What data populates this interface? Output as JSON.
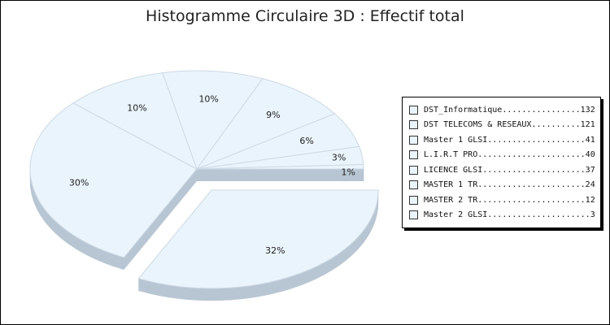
{
  "chart_data": {
    "type": "pie",
    "title": "Histogramme Circulaire 3D : Effectif total",
    "slices": [
      {
        "label": "DST_Informatique",
        "value": 132,
        "percent_label": "32%",
        "exploded": true
      },
      {
        "label": "DST TELECOMS & RESEAUX",
        "value": 121,
        "percent_label": "30%"
      },
      {
        "label": "Master 1 GLSI",
        "value": 41,
        "percent_label": "10%"
      },
      {
        "label": "L.I.R.T PRO",
        "value": 40,
        "percent_label": "10%"
      },
      {
        "label": "LICENCE GLSI",
        "value": 37,
        "percent_label": "9%"
      },
      {
        "label": "MASTER 1 TR",
        "value": 24,
        "percent_label": "6%"
      },
      {
        "label": "MASTER 2 TR",
        "value": 12,
        "percent_label": "3%"
      },
      {
        "label": "Master 2 GLSI",
        "value": 3,
        "percent_label": "1%"
      }
    ],
    "legend": {
      "position": "right",
      "entries": [
        "DST_Informatique................132",
        "DST TELECOMS & RESEAUX..........121",
        "Master 1 GLSI....................41",
        "L.I.R.T PRO......................40",
        "LICENCE GLSI.....................37",
        "MASTER 1 TR......................24",
        "MASTER 2 TR......................12",
        "Master 2 GLSI.....................3"
      ]
    },
    "colors": {
      "top_face": "#eaf4fc",
      "side_face": "#b8c6d3",
      "separator": "#cdd9e4"
    }
  }
}
